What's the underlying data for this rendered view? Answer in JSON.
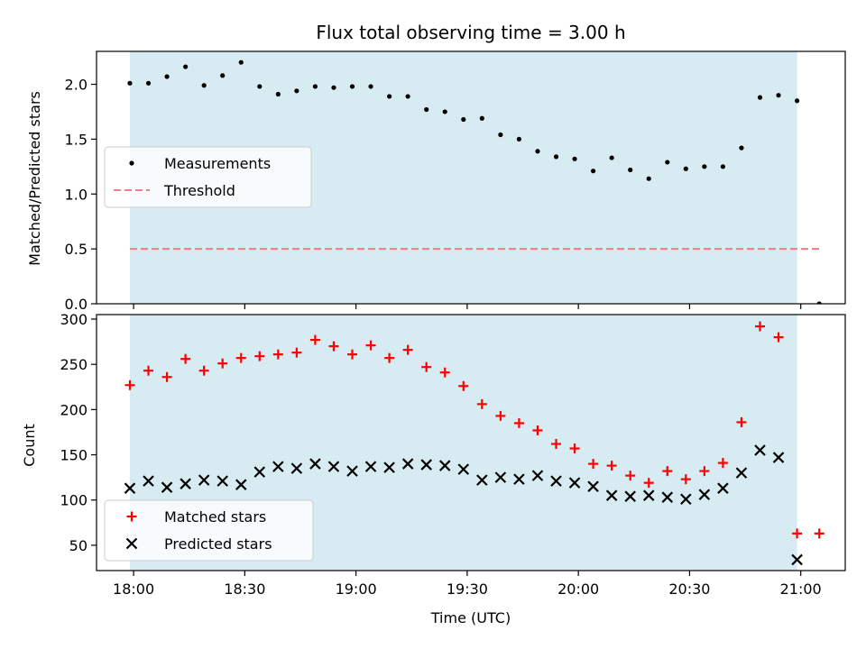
{
  "colors": {
    "background": "#ffffff",
    "span": "#add8e6",
    "measurement": "#000000",
    "threshold": "#f08080",
    "matched": "#ff0000",
    "predicted": "#000000",
    "axis": "#000000"
  },
  "chart_data": [
    {
      "id": "ratio",
      "type": "scatter",
      "title": "Flux total observing time = 3.00 h",
      "xlabel": "",
      "ylabel": "Matched/Predicted stars",
      "xlim": [
        "17:50",
        "21:12"
      ],
      "ylim": [
        0,
        2.3
      ],
      "yticks": [
        0.0,
        0.5,
        1.0,
        1.5,
        2.0
      ],
      "ytick_labels": [
        "0.0",
        "0.5",
        "1.0",
        "1.5",
        "2.0"
      ],
      "shaded_span": [
        "17:59",
        "20:59"
      ],
      "legend": {
        "placement": "center-left"
      },
      "threshold": {
        "name": "Threshold",
        "y": 0.5,
        "x": [
          "17:59",
          "21:05"
        ],
        "style": "dashed"
      },
      "series": [
        {
          "name": "Measurements",
          "marker": "dot",
          "x": [
            "17:59",
            "18:04",
            "18:09",
            "18:14",
            "18:19",
            "18:24",
            "18:29",
            "18:34",
            "18:39",
            "18:44",
            "18:49",
            "18:54",
            "18:59",
            "19:04",
            "19:09",
            "19:14",
            "19:19",
            "19:24",
            "19:29",
            "19:34",
            "19:39",
            "19:44",
            "19:49",
            "19:54",
            "19:59",
            "20:04",
            "20:09",
            "20:14",
            "20:19",
            "20:24",
            "20:29",
            "20:34",
            "20:39",
            "20:44",
            "20:49",
            "20:54",
            "20:59",
            "21:05"
          ],
          "y": [
            2.01,
            2.01,
            2.07,
            2.16,
            1.99,
            2.08,
            2.2,
            1.98,
            1.91,
            1.94,
            1.98,
            1.97,
            1.98,
            1.98,
            1.89,
            1.89,
            1.77,
            1.75,
            1.68,
            1.69,
            1.54,
            1.5,
            1.39,
            1.34,
            1.32,
            1.21,
            1.33,
            1.22,
            1.14,
            1.29,
            1.23,
            1.25,
            1.25,
            1.42,
            1.88,
            1.9,
            1.85,
            0.0
          ]
        }
      ]
    },
    {
      "id": "counts",
      "type": "scatter",
      "title": "",
      "xlabel": "Time (UTC)",
      "ylabel": "Count",
      "xlim": [
        "17:50",
        "21:12"
      ],
      "ylim": [
        22,
        305
      ],
      "yticks": [
        50,
        100,
        150,
        200,
        250,
        300
      ],
      "ytick_labels": [
        "50",
        "100",
        "150",
        "200",
        "250",
        "300"
      ],
      "xticks": [
        "18:00",
        "18:30",
        "19:00",
        "19:30",
        "20:00",
        "20:30",
        "21:00"
      ],
      "xtick_labels": [
        "18:00",
        "18:30",
        "19:00",
        "19:30",
        "20:00",
        "20:30",
        "21:00"
      ],
      "shaded_span": [
        "17:59",
        "20:59"
      ],
      "legend": {
        "placement": "lower-left"
      },
      "series": [
        {
          "name": "Matched stars",
          "marker": "plus",
          "x": [
            "17:59",
            "18:04",
            "18:09",
            "18:14",
            "18:19",
            "18:24",
            "18:29",
            "18:34",
            "18:39",
            "18:44",
            "18:49",
            "18:54",
            "18:59",
            "19:04",
            "19:09",
            "19:14",
            "19:19",
            "19:24",
            "19:29",
            "19:34",
            "19:39",
            "19:44",
            "19:49",
            "19:54",
            "19:59",
            "20:04",
            "20:09",
            "20:14",
            "20:19",
            "20:24",
            "20:29",
            "20:34",
            "20:39",
            "20:44",
            "20:49",
            "20:54",
            "20:59",
            "21:05"
          ],
          "y": [
            227,
            243,
            236,
            256,
            243,
            251,
            257,
            259,
            261,
            263,
            277,
            270,
            261,
            271,
            257,
            266,
            247,
            241,
            226,
            206,
            193,
            185,
            177,
            162,
            157,
            140,
            138,
            127,
            119,
            132,
            123,
            132,
            141,
            186,
            292,
            280,
            63,
            63
          ]
        },
        {
          "name": "Predicted stars",
          "marker": "x",
          "x": [
            "17:59",
            "18:04",
            "18:09",
            "18:14",
            "18:19",
            "18:24",
            "18:29",
            "18:34",
            "18:39",
            "18:44",
            "18:49",
            "18:54",
            "18:59",
            "19:04",
            "19:09",
            "19:14",
            "19:19",
            "19:24",
            "19:29",
            "19:34",
            "19:39",
            "19:44",
            "19:49",
            "19:54",
            "19:59",
            "20:04",
            "20:09",
            "20:14",
            "20:19",
            "20:24",
            "20:29",
            "20:34",
            "20:39",
            "20:44",
            "20:49",
            "20:54",
            "20:59"
          ],
          "y": [
            113,
            121,
            114,
            118,
            122,
            121,
            117,
            131,
            137,
            135,
            140,
            137,
            132,
            137,
            136,
            140,
            139,
            138,
            134,
            122,
            125,
            123,
            127,
            121,
            119,
            115,
            105,
            104,
            105,
            103,
            101,
            106,
            113,
            130,
            155,
            147,
            34
          ]
        }
      ]
    }
  ]
}
